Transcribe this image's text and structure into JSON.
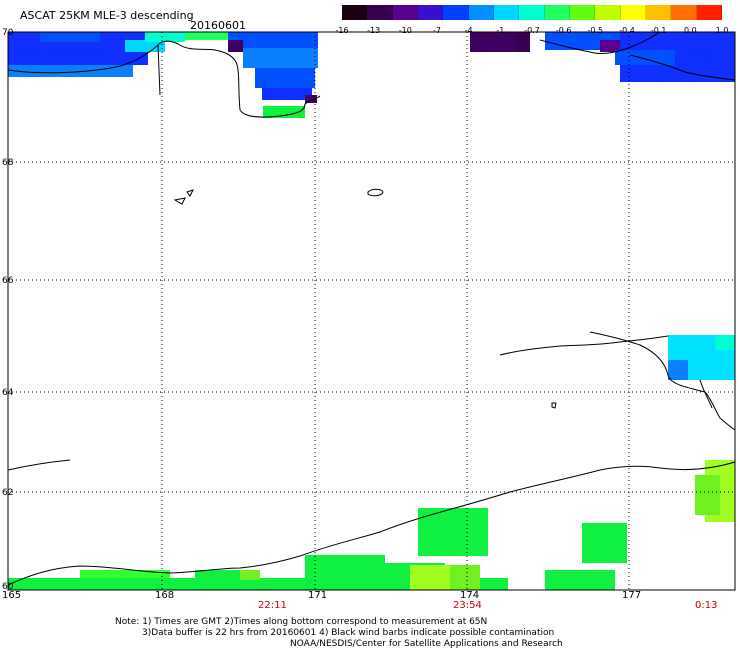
{
  "header": {
    "title": "ASCAT 25KM MLE-3 descending",
    "date": "20160601"
  },
  "colorbar": {
    "labels": [
      "-16",
      "-13",
      "-10",
      "-7",
      "-4",
      "-1",
      "-0.7",
      "-0.6",
      "-0.5",
      "-0.4",
      "-0.1",
      "0.0",
      "1.0"
    ],
    "colors": [
      "#1a0010",
      "#3a0050",
      "#5a0090",
      "#3a10d0",
      "#0040ff",
      "#0090ff",
      "#00d8ff",
      "#00ffd0",
      "#20ff60",
      "#60ff10",
      "#c0ff00",
      "#ffff00",
      "#ffc000",
      "#ff7000",
      "#ff2000"
    ]
  },
  "axes": {
    "lat_labels": [
      "70",
      "68",
      "66",
      "64",
      "62",
      "60"
    ],
    "lon_labels": [
      "165",
      "168",
      "171",
      "174",
      "177"
    ],
    "time_labels": [
      "22:11",
      "23:54",
      "0:13"
    ],
    "time_color": "#cc0000"
  },
  "notes": [
    "Note: 1) Times are GMT 2)Times along bottom correspond to measurement at 65N",
    "3)Data buffer is 22 hrs from 20160601 4) Black wind barbs indicate possible contamination",
    "NOAA/NESDIS/Center for Satellite Applications and Research"
  ],
  "data_colors": {
    "deep_blue": "#1030ff",
    "blue": "#0050ff",
    "mid_blue": "#0a80ff",
    "cyan": "#00e0ff",
    "dark_purple": "#400060",
    "green": "#10f040",
    "bright_green": "#30ff30",
    "yellow_green": "#a0ff20",
    "lime": "#70f020"
  }
}
